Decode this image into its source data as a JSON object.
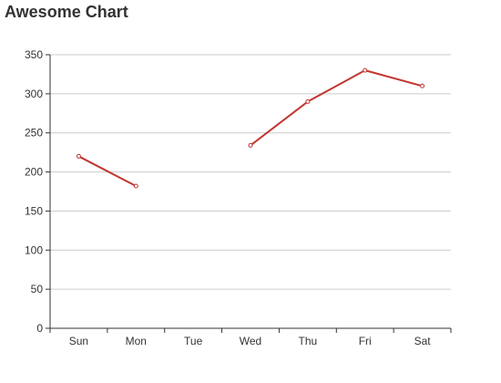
{
  "chart_data": {
    "type": "line",
    "title": "Awesome Chart",
    "xlabel": "",
    "ylabel": "",
    "categories": [
      "Sun",
      "Mon",
      "Tue",
      "Wed",
      "Thu",
      "Fri",
      "Sat"
    ],
    "yticks": [
      "0",
      "50",
      "100",
      "150",
      "200",
      "250",
      "300",
      "350"
    ],
    "ylim": [
      0,
      350
    ],
    "grid": true,
    "legend": "none",
    "colors": {
      "series": "#c23531",
      "grid": "#cccccc",
      "axis": "#333333"
    },
    "series": [
      {
        "values": [
          220,
          182,
          null,
          234,
          290,
          330,
          310
        ]
      }
    ]
  }
}
